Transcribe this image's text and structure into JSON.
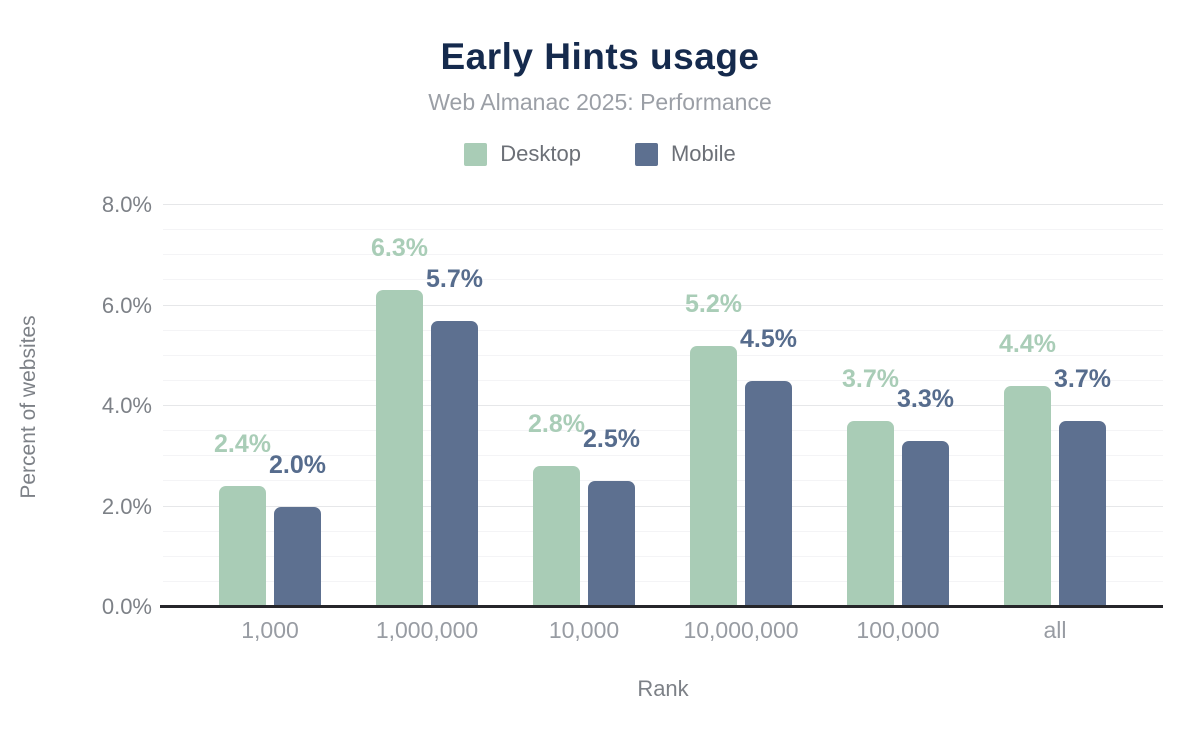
{
  "title": "Early Hints usage",
  "subtitle": "Web Almanac 2025: Performance",
  "legend": [
    {
      "label": "Desktop",
      "color": "#a9ccb6"
    },
    {
      "label": "Mobile",
      "color": "#5d7090"
    }
  ],
  "chart_data": {
    "type": "bar",
    "title": "Early Hints usage",
    "subtitle": "Web Almanac 2025: Performance",
    "xlabel": "Rank",
    "ylabel": "Percent of websites",
    "categories": [
      "1,000",
      "1,000,000",
      "10,000",
      "10,000,000",
      "100,000",
      "all"
    ],
    "series": [
      {
        "name": "Desktop",
        "color": "#a9ccb6",
        "label_color": "#a9cdb7",
        "values": [
          2.4,
          6.3,
          2.8,
          5.2,
          3.7,
          4.4
        ],
        "value_labels": [
          "2.4%",
          "6.3%",
          "2.8%",
          "5.2%",
          "3.7%",
          "4.4%"
        ]
      },
      {
        "name": "Mobile",
        "color": "#5d7090",
        "label_color": "#566c8d",
        "values": [
          2.0,
          5.7,
          2.5,
          4.5,
          3.3,
          3.7
        ],
        "value_labels": [
          "2.0%",
          "5.7%",
          "2.5%",
          "4.5%",
          "3.3%",
          "3.7%"
        ]
      }
    ],
    "ylim": [
      0,
      8
    ],
    "ytick_step_major": 2,
    "ytick_step_minor": 0.5,
    "ytick_labels": [
      "0.0%",
      "2.0%",
      "4.0%",
      "6.0%",
      "8.0%"
    ],
    "grid": "horizontal",
    "legend_position": "top-center"
  },
  "colors": {
    "title": "#152a4d",
    "subtitle": "#9b9fa6",
    "legend_text": "#6c7077",
    "axis_text": "#7d8187",
    "tick_text": "#989ca3",
    "gridline_major": "#e6e7e9",
    "gridline_minor": "#f4f4f6",
    "baseline": "#26262a"
  }
}
